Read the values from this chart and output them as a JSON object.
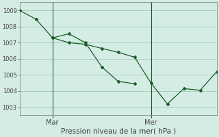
{
  "xlabel": "Pression niveau de la mer( hPa )",
  "background_color": "#d4ede4",
  "grid_color": "#a8cfc0",
  "line_color": "#1a5c2a",
  "ylim": [
    1002.5,
    1009.5
  ],
  "yticks": [
    1003,
    1004,
    1005,
    1006,
    1007,
    1008,
    1009
  ],
  "xlim": [
    0,
    108
  ],
  "vline_positions": [
    18,
    72
  ],
  "xtick_positions": [
    18,
    72
  ],
  "xtick_labels": [
    "Mar",
    "Mer"
  ],
  "series1_x": [
    0,
    9,
    18,
    27,
    36,
    45,
    54,
    63
  ],
  "series1_y": [
    1009.0,
    1008.45,
    1007.3,
    1007.55,
    1007.0,
    1005.5,
    1004.6,
    1004.45
  ],
  "series2_x": [
    18,
    27,
    36,
    45,
    54,
    63,
    72,
    81,
    90,
    99,
    108
  ],
  "series2_y": [
    1007.3,
    1007.0,
    1006.9,
    1006.65,
    1006.4,
    1006.1,
    1004.5,
    1003.2,
    1004.15,
    1004.05,
    1005.2
  ],
  "marker": "D",
  "markersize": 2.0,
  "linewidth": 0.9,
  "xlabel_fontsize": 7.5,
  "ytick_fontsize": 6,
  "xtick_fontsize": 7
}
